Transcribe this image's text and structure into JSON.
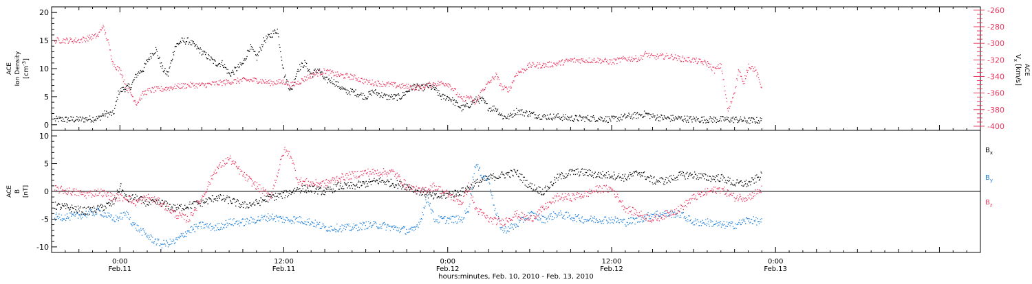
{
  "colors": {
    "black": "#000000",
    "red": "#e8375f",
    "blue": "#1e7fd8"
  },
  "time_axis": {
    "label": "hours:minutes, Feb. 10, 2010 - Feb. 13, 2010",
    "start_hour": -5,
    "end_hour": 63,
    "major_ticks": [
      {
        "hour": 0,
        "time": "0:00",
        "date": "Feb.11"
      },
      {
        "hour": 12,
        "time": "12:00",
        "date": "Feb.11"
      },
      {
        "hour": 24,
        "time": "0:00",
        "date": "Feb.12"
      },
      {
        "hour": 36,
        "time": "12:00",
        "date": "Feb.12"
      },
      {
        "hour": 48,
        "time": "0:00",
        "date": "Feb.13"
      }
    ]
  },
  "chart_data": [
    {
      "type": "scatter",
      "title": "",
      "ylabel_left": {
        "line1": "ACE",
        "line2": "Ion Density",
        "line3": "[cm",
        "sup": "-3",
        "close": "]"
      },
      "ylabel_right": {
        "line1": "ACE",
        "line2_main": "V",
        "line2_sub": "x",
        "line2_rest": " [km/s]"
      },
      "ylim_left": [
        -1,
        21
      ],
      "yticks_left": [
        0,
        5,
        10,
        15,
        20
      ],
      "ylim_right": [
        -405,
        -256
      ],
      "yticks_right": [
        -260,
        -280,
        -300,
        -320,
        -340,
        -360,
        -380,
        -400
      ],
      "series": [
        {
          "color": "black",
          "axis": "left",
          "x": [
            -4.8,
            -3,
            -1.6,
            -1.2,
            -0.5,
            -0.1,
            0.3,
            0.8,
            1.2,
            1.7,
            2.1,
            2.6,
            3.1,
            3.5,
            4,
            4.5,
            5,
            5.5,
            6,
            6.5,
            7,
            7.5,
            8,
            8.5,
            9,
            9.5,
            10,
            10.5,
            11,
            11.5,
            12,
            12.5,
            13,
            13.5,
            14,
            14.5,
            15,
            15.5,
            16,
            16.5,
            17,
            17.5,
            18,
            18.5,
            19,
            19.5,
            20,
            20.5,
            21,
            21.5,
            22,
            22.5,
            23,
            23.5,
            24,
            24.5,
            25,
            25.5,
            26,
            26.5,
            27,
            27.5,
            28,
            28.5,
            29,
            30,
            31,
            32,
            33,
            34,
            35,
            36,
            37,
            38,
            38.5,
            39,
            40,
            41,
            42,
            43,
            44,
            45,
            46,
            47
          ],
          "y": [
            1,
            1,
            1.2,
            2,
            2,
            6,
            6.5,
            7,
            9,
            10,
            12,
            13.5,
            10,
            9,
            14,
            15,
            15,
            14,
            13,
            12,
            11,
            11,
            9,
            10,
            11,
            14,
            12,
            15,
            16,
            17,
            9,
            6,
            10,
            11,
            9,
            10,
            8,
            8,
            7,
            6,
            6,
            5.5,
            5,
            6,
            5.5,
            5,
            5,
            5,
            6,
            7,
            6.5,
            7,
            6.5,
            5,
            5,
            4,
            3,
            3.5,
            4.5,
            4.5,
            3,
            3,
            1.5,
            1.5,
            2.5,
            2,
            1.5,
            1.5,
            1.2,
            1.2,
            1.2,
            1,
            1.5,
            1.8,
            2,
            1.5,
            1.2,
            1.2,
            1,
            1,
            1,
            1,
            0.8,
            0.8
          ]
        },
        {
          "color": "red",
          "axis": "right",
          "x": [
            -4.8,
            -3,
            -1.6,
            -1.3,
            -0.9,
            -0.5,
            0.1,
            0.4,
            0.7,
            1.2,
            1.7,
            2.2,
            3,
            4,
            5,
            6,
            7,
            8,
            9,
            10,
            11,
            12,
            12.5,
            13,
            14,
            15,
            16,
            17,
            18,
            19,
            20,
            21,
            22,
            23,
            24,
            24.5,
            25,
            25.5,
            26,
            26.5,
            27,
            27.5,
            28,
            28.5,
            29,
            29.5,
            30,
            31,
            32,
            33,
            34,
            35,
            36,
            37,
            38,
            38.5,
            39,
            40,
            40.5,
            41,
            42,
            43,
            43.5,
            44,
            44.5,
            45,
            45.3,
            45.6,
            46,
            46.5,
            47
          ],
          "y": [
            -296,
            -296,
            -290,
            -278,
            -298,
            -324,
            -335,
            -352,
            -358,
            -372,
            -360,
            -356,
            -355,
            -352,
            -350,
            -350,
            -348,
            -346,
            -344,
            -344,
            -347,
            -346,
            -350,
            -347,
            -338,
            -333,
            -338,
            -340,
            -346,
            -348,
            -350,
            -352,
            -353,
            -348,
            -348,
            -357,
            -368,
            -364,
            -372,
            -356,
            -347,
            -338,
            -354,
            -355,
            -336,
            -332,
            -326,
            -326,
            -324,
            -320,
            -320,
            -320,
            -322,
            -318,
            -318,
            -312,
            -316,
            -315,
            -316,
            -318,
            -320,
            -324,
            -332,
            -326,
            -382,
            -356,
            -330,
            -350,
            -326,
            -332,
            -354
          ]
        }
      ]
    },
    {
      "type": "scatter",
      "title": "",
      "ylabel_left": {
        "line1": "ACE",
        "line2": "B",
        "line3": "[nT]"
      },
      "ylim": [
        -11,
        11
      ],
      "yticks": [
        -10,
        -5,
        0,
        5,
        10
      ],
      "zero_line": true,
      "series": [
        {
          "name": "B",
          "sub": "x",
          "color": "black",
          "x": [
            -4.8,
            -3.5,
            -2.5,
            -1.5,
            -0.5,
            0,
            0.5,
            1,
            2,
            3,
            4,
            5,
            6,
            7,
            8,
            9,
            10,
            11,
            12,
            12.5,
            13,
            14,
            15,
            16,
            17,
            18,
            19,
            20,
            21,
            22,
            23,
            24,
            25,
            26,
            27,
            28,
            29,
            30,
            31,
            32,
            33,
            34,
            35,
            36,
            37,
            38,
            39,
            40,
            41,
            42,
            43,
            44,
            45,
            46,
            47
          ],
          "y": [
            -2.5,
            -3,
            -3.5,
            -3,
            -2,
            1,
            -1.5,
            -1,
            -2,
            -2,
            -3,
            -2.5,
            -2,
            -1,
            -1.5,
            -2.5,
            -2,
            -1,
            -0.5,
            0,
            0.5,
            0.5,
            0,
            1,
            1,
            1.5,
            2,
            1.5,
            1,
            0,
            -1,
            -0.5,
            0,
            1.5,
            2.5,
            3,
            3.5,
            1,
            0,
            2.5,
            3.5,
            3.5,
            3,
            3,
            2.5,
            3.5,
            2,
            2,
            3,
            3,
            2.5,
            2.5,
            1.5,
            1.5,
            3
          ]
        },
        {
          "name": "B",
          "sub": "y",
          "color": "blue",
          "x": [
            -4.8,
            -3.5,
            -2.5,
            -1.5,
            -0.5,
            0.5,
            1,
            1.5,
            2,
            3,
            4,
            5,
            6,
            7,
            8,
            9,
            10,
            11,
            12,
            13,
            14,
            15,
            16,
            17,
            18,
            19,
            20,
            21,
            21.5,
            22,
            22.5,
            23,
            24,
            25,
            25.5,
            26,
            26.5,
            27,
            27.5,
            28,
            29,
            30,
            31,
            32,
            33,
            34,
            35,
            36,
            37,
            38,
            39,
            40,
            41,
            42,
            43,
            44,
            45,
            46,
            47
          ],
          "y": [
            -4.5,
            -4.5,
            -4,
            -3.5,
            -5,
            -4,
            -6,
            -7,
            -8,
            -9.5,
            -9,
            -7,
            -6,
            -6.5,
            -5.5,
            -5.5,
            -5,
            -4.5,
            -5,
            -5,
            -5.5,
            -6.5,
            -6.5,
            -6.5,
            -6,
            -6,
            -6.5,
            -7,
            -7,
            -5,
            -1,
            -5,
            -5,
            -5,
            -3,
            5,
            3,
            2,
            -4,
            -7,
            -6,
            -4,
            -5,
            -4,
            -4.5,
            -5,
            -5,
            -5,
            -5.5,
            -5,
            -4,
            -4,
            -4,
            -5.5,
            -5.5,
            -6,
            -6,
            -5,
            -5.5
          ]
        },
        {
          "name": "B",
          "sub": "z",
          "color": "red",
          "x": [
            -4.8,
            -3.5,
            -2.5,
            -1.5,
            -0.5,
            0.5,
            1,
            2,
            3,
            4,
            5,
            6,
            7,
            8,
            9,
            10,
            11,
            12,
            12.5,
            13,
            14,
            15,
            16,
            17,
            18,
            19,
            20,
            21,
            22,
            23,
            24,
            25,
            25.5,
            26,
            27,
            28,
            29,
            30,
            31,
            32,
            33,
            34,
            35,
            36,
            37,
            38,
            39,
            40,
            41,
            42,
            43,
            44,
            45,
            46,
            47
          ],
          "y": [
            0.5,
            0,
            -0.5,
            0,
            -1,
            -1,
            -2,
            -1,
            -2,
            -4,
            -5,
            -1,
            4,
            6,
            3,
            1,
            -1,
            7.5,
            6.5,
            2,
            1.5,
            1.5,
            2.5,
            3,
            3.5,
            3.5,
            3.5,
            1,
            0,
            1,
            -0.5,
            -2,
            1,
            -3,
            -5,
            -5.5,
            -4,
            -5,
            -3,
            -1,
            -1,
            -0.5,
            0.5,
            0.5,
            -3,
            -4,
            -5,
            -4,
            -3,
            -1,
            0,
            0.5,
            -1,
            -1,
            0.5
          ]
        }
      ]
    }
  ]
}
